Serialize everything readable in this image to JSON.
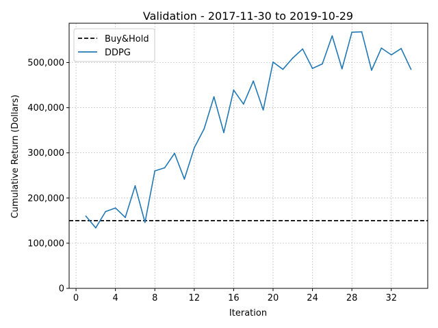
{
  "chart_data": {
    "type": "line",
    "title": "Validation - 2017-11-30 to 2019-10-29",
    "xlabel": "Iteration",
    "ylabel": "Cumulative Return (Dollars)",
    "xlim": [
      -0.7,
      35.7
    ],
    "ylim": [
      0,
      587000
    ],
    "xticks": [
      0,
      4,
      8,
      12,
      16,
      20,
      24,
      28,
      32
    ],
    "yticks": [
      0,
      100000,
      200000,
      300000,
      400000,
      500000
    ],
    "ytick_labels": [
      "0",
      "100,000",
      "200,000",
      "300,000",
      "400,000",
      "500,000"
    ],
    "grid": true,
    "legend_position": "top-left",
    "series": [
      {
        "name": "Buy&Hold",
        "style": "dashed",
        "color": "#000000",
        "type": "hline",
        "y": 150000
      },
      {
        "name": "DDPG",
        "style": "solid",
        "color": "#1f77b4",
        "x": [
          1,
          2,
          3,
          4,
          5,
          6,
          7,
          8,
          9,
          10,
          11,
          12,
          13,
          14,
          15,
          16,
          17,
          18,
          19,
          20,
          21,
          22,
          23,
          24,
          25,
          26,
          27,
          28,
          29,
          30,
          31,
          32,
          33,
          34
        ],
        "y": [
          160000,
          134000,
          170000,
          178000,
          157000,
          227000,
          146000,
          260000,
          267000,
          299000,
          242000,
          311000,
          353000,
          424000,
          345000,
          439000,
          408000,
          459000,
          395000,
          501000,
          485000,
          510000,
          530000,
          487000,
          497000,
          559000,
          486000,
          567000,
          568000,
          483000,
          532000,
          517000,
          531000,
          485000
        ]
      }
    ]
  }
}
